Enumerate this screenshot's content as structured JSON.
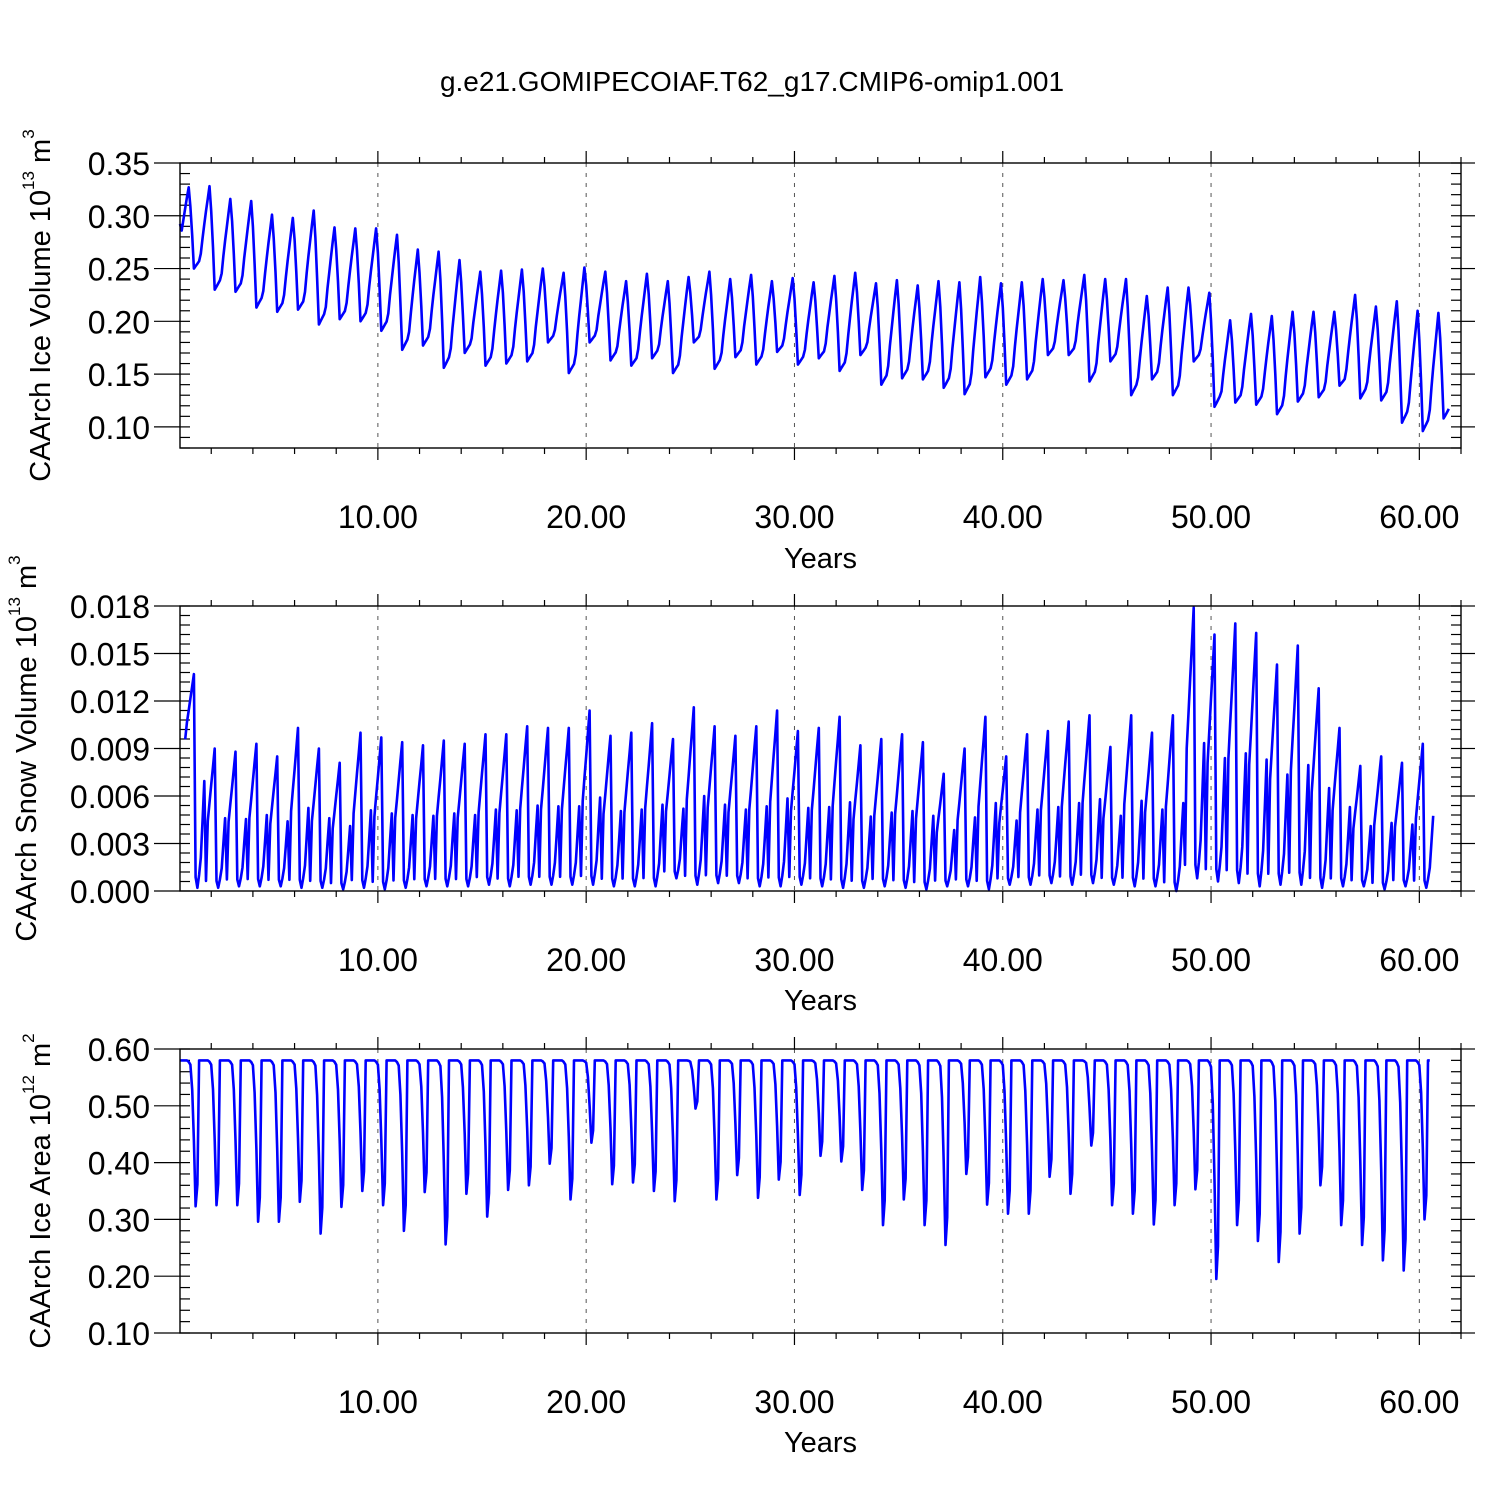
{
  "title": "g.e21.GOMIPECOIAF.T62_g17.CMIP6-omip1.001",
  "colors": {
    "series": "#0000ff",
    "axes": "#000000",
    "grid": "#555555"
  },
  "chart_data": [
    {
      "type": "line",
      "ylabel": "CAArch Ice Volume 10",
      "ylabel_exp": "13",
      "ylabel_unit": "m",
      "ylabel_unit_exp": "3",
      "xlabel": "Years",
      "xlim": [
        0.5,
        62.0
      ],
      "ylim": [
        0.08,
        0.35
      ],
      "xticks": [
        10,
        20,
        30,
        40,
        50,
        60
      ],
      "xtick_labels": [
        "10.00",
        "20.00",
        "30.00",
        "40.00",
        "50.00",
        "60.00"
      ],
      "yticks": [
        0.1,
        0.15,
        0.2,
        0.25,
        0.3,
        0.35
      ],
      "ytick_labels": [
        "0.10",
        "0.15",
        "0.20",
        "0.25",
        "0.30",
        "0.35"
      ],
      "grid": "vertical dashed at major x ticks",
      "seasonal_cycle": {
        "trough_month": 8,
        "peak_month": 5
      },
      "annual_max": [
        0.327,
        0.328,
        0.316,
        0.314,
        0.301,
        0.298,
        0.305,
        0.289,
        0.288,
        0.288,
        0.282,
        0.268,
        0.266,
        0.258,
        0.247,
        0.248,
        0.249,
        0.25,
        0.246,
        0.251,
        0.247,
        0.238,
        0.245,
        0.238,
        0.242,
        0.247,
        0.24,
        0.244,
        0.238,
        0.241,
        0.237,
        0.243,
        0.246,
        0.236,
        0.239,
        0.234,
        0.238,
        0.237,
        0.242,
        0.236,
        0.237,
        0.24,
        0.239,
        0.244,
        0.24,
        0.24,
        0.224,
        0.232,
        0.232,
        0.227,
        0.201,
        0.207,
        0.205,
        0.209,
        0.209,
        0.209,
        0.225,
        0.214,
        0.219,
        0.21,
        0.208
      ],
      "annual_min": [
        0.25,
        0.23,
        0.228,
        0.213,
        0.209,
        0.211,
        0.197,
        0.202,
        0.2,
        0.191,
        0.173,
        0.177,
        0.156,
        0.17,
        0.158,
        0.16,
        0.162,
        0.18,
        0.151,
        0.18,
        0.163,
        0.158,
        0.165,
        0.151,
        0.18,
        0.155,
        0.166,
        0.159,
        0.171,
        0.159,
        0.165,
        0.153,
        0.168,
        0.14,
        0.146,
        0.145,
        0.137,
        0.131,
        0.147,
        0.14,
        0.145,
        0.168,
        0.168,
        0.143,
        0.162,
        0.13,
        0.145,
        0.13,
        0.162,
        0.119,
        0.123,
        0.121,
        0.112,
        0.124,
        0.128,
        0.139,
        0.127,
        0.125,
        0.104,
        0.096,
        0.108
      ]
    },
    {
      "type": "line",
      "ylabel": "CAArch Snow Volume 10",
      "ylabel_exp": "13",
      "ylabel_unit": "m",
      "ylabel_unit_exp": "3",
      "xlabel": "Years",
      "xlim": [
        0.5,
        62.0
      ],
      "ylim": [
        0.0,
        0.018
      ],
      "xticks": [
        10,
        20,
        30,
        40,
        50,
        60
      ],
      "xtick_labels": [
        "10.00",
        "20.00",
        "30.00",
        "40.00",
        "50.00",
        "60.00"
      ],
      "yticks": [
        0.0,
        0.003,
        0.006,
        0.009,
        0.012,
        0.015,
        0.018
      ],
      "ytick_labels": [
        "0.000",
        "0.003",
        "0.006",
        "0.009",
        "0.012",
        "0.015",
        "0.018"
      ],
      "grid": "vertical dashed at major x ticks",
      "seasonal_cycle": {
        "trough_month": 8,
        "peak_month": 5
      },
      "annual_max": [
        0.0137,
        0.009,
        0.0088,
        0.0093,
        0.0085,
        0.0103,
        0.009,
        0.0081,
        0.01,
        0.0097,
        0.0094,
        0.0092,
        0.0095,
        0.0093,
        0.0099,
        0.0099,
        0.0104,
        0.0103,
        0.0103,
        0.0114,
        0.0098,
        0.01,
        0.0106,
        0.0096,
        0.0116,
        0.0104,
        0.0098,
        0.0104,
        0.0114,
        0.0101,
        0.0103,
        0.011,
        0.0092,
        0.0096,
        0.0099,
        0.0094,
        0.0074,
        0.009,
        0.011,
        0.0085,
        0.0099,
        0.0101,
        0.0107,
        0.0111,
        0.0091,
        0.0111,
        0.01,
        0.0111,
        0.0179,
        0.0162,
        0.0169,
        0.0163,
        0.0143,
        0.0155,
        0.0128,
        0.0103,
        0.0079,
        0.0085,
        0.0081,
        0.0093
      ],
      "annual_min": [
        0.0002,
        0.0002,
        0.0003,
        0.0003,
        0.0003,
        0.0002,
        0.0002,
        0.0001,
        0.0002,
        0.0001,
        0.0002,
        0.0003,
        0.0003,
        0.0003,
        0.0004,
        0.0003,
        0.0004,
        0.0004,
        0.0004,
        0.0004,
        0.0003,
        0.0003,
        0.0003,
        0.0008,
        0.0004,
        0.0005,
        0.0005,
        0.0003,
        0.0003,
        0.0004,
        0.0003,
        0.0002,
        0.0002,
        0.0003,
        0.0002,
        0.0001,
        0.0003,
        0.0003,
        0.0001,
        0.0004,
        0.0004,
        0.0005,
        0.0004,
        0.0005,
        0.0004,
        0.0003,
        0.0003,
        0.0,
        0.0008,
        0.0006,
        0.0005,
        0.0003,
        0.0004,
        0.0004,
        0.0002,
        0.0003,
        0.0003,
        0.0001,
        0.0003,
        0.0002
      ]
    },
    {
      "type": "line",
      "ylabel": "CAArch Ice Area 10",
      "ylabel_exp": "12",
      "ylabel_unit": "m",
      "ylabel_unit_exp": "2",
      "xlabel": "Years",
      "xlim": [
        0.5,
        62.0
      ],
      "ylim": [
        0.1,
        0.6
      ],
      "xticks": [
        10,
        20,
        30,
        40,
        50,
        60
      ],
      "xtick_labels": [
        "10.00",
        "20.00",
        "30.00",
        "40.00",
        "50.00",
        "60.00"
      ],
      "yticks": [
        0.1,
        0.2,
        0.3,
        0.4,
        0.5,
        0.6
      ],
      "ytick_labels": [
        "0.10",
        "0.20",
        "0.30",
        "0.40",
        "0.50",
        "0.60"
      ],
      "grid": "vertical dashed at major x ticks",
      "seasonal_cycle": {
        "plateau": 0.58,
        "trough_month": 9
      },
      "annual_min": [
        0.323,
        0.325,
        0.325,
        0.296,
        0.296,
        0.331,
        0.275,
        0.322,
        0.35,
        0.325,
        0.28,
        0.348,
        0.256,
        0.345,
        0.305,
        0.352,
        0.36,
        0.398,
        0.335,
        0.435,
        0.362,
        0.365,
        0.35,
        0.332,
        0.495,
        0.335,
        0.378,
        0.338,
        0.37,
        0.343,
        0.412,
        0.402,
        0.352,
        0.29,
        0.335,
        0.29,
        0.255,
        0.38,
        0.326,
        0.31,
        0.31,
        0.375,
        0.345,
        0.43,
        0.325,
        0.31,
        0.291,
        0.325,
        0.353,
        0.195,
        0.29,
        0.262,
        0.225,
        0.275,
        0.36,
        0.29,
        0.255,
        0.228,
        0.21,
        0.3
      ]
    }
  ]
}
